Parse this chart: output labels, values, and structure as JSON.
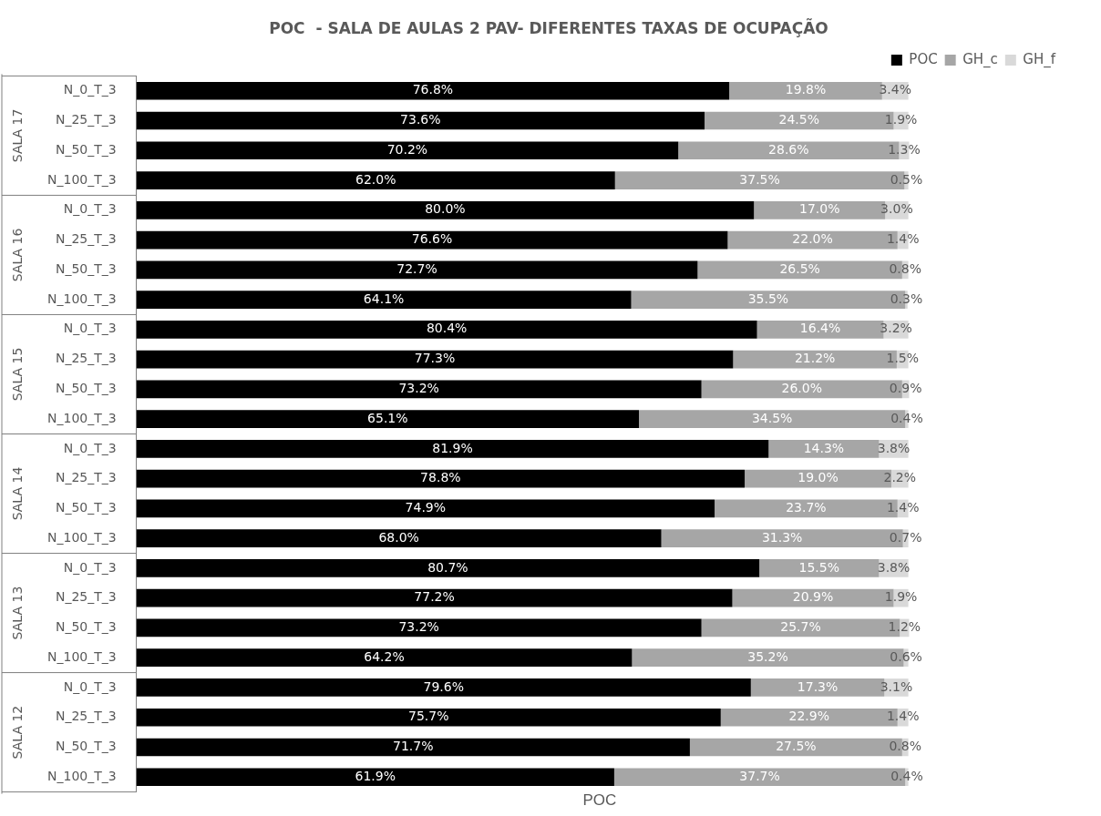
{
  "chart_data": {
    "type": "bar",
    "orientation": "horizontal",
    "stacked": true,
    "title": "POC  - SALA DE AULAS 2 PAV- DIFERENTES TAXAS DE OCUPAÇÃO",
    "xlabel": "POC",
    "categories": [
      "N_0_T_3",
      "N_25_T_3",
      "N_50_T_3",
      "N_100_T_3",
      "N_0_T_3",
      "N_25_T_3",
      "N_50_T_3",
      "N_100_T_3",
      "N_0_T_3",
      "N_25_T_3",
      "N_50_T_3",
      "N_100_T_3",
      "N_0_T_3",
      "N_25_T_3",
      "N_50_T_3",
      "N_100_T_3",
      "N_0_T_3",
      "N_25_T_3",
      "N_50_T_3",
      "N_100_T_3",
      "N_0_T_3",
      "N_25_T_3",
      "N_50_T_3",
      "N_100_T_3"
    ],
    "series": [
      {
        "name": "POC",
        "color": "#000000",
        "values": [
          76.8,
          73.6,
          70.2,
          62.0,
          80.0,
          76.6,
          72.7,
          64.1,
          80.4,
          77.3,
          73.2,
          65.1,
          81.9,
          78.8,
          74.9,
          68.0,
          80.7,
          77.2,
          73.2,
          64.2,
          79.6,
          75.7,
          71.7,
          61.9
        ],
        "value_labels": [
          "76.8%",
          "73.6%",
          "70.2%",
          "62.0%",
          "80.0%",
          "76.6%",
          "72.7%",
          "64.1%",
          "80.4%",
          "77.3%",
          "73.2%",
          "65.1%",
          "81.9%",
          "78.8%",
          "74.9%",
          "68.0%",
          "80.7%",
          "77.2%",
          "73.2%",
          "64.2%",
          "79.6%",
          "75.7%",
          "71.7%",
          "61.9%"
        ]
      },
      {
        "name": "GH_c",
        "color": "#a6a6a6",
        "values": [
          19.8,
          24.5,
          28.6,
          37.5,
          17.0,
          22.0,
          26.5,
          35.5,
          16.4,
          21.2,
          26.0,
          34.5,
          14.3,
          19.0,
          23.7,
          31.3,
          15.5,
          20.9,
          25.7,
          35.2,
          17.3,
          22.9,
          27.5,
          37.7
        ],
        "value_labels": [
          "19.8%",
          "24.5%",
          "28.6%",
          "37.5%",
          "17.0%",
          "22.0%",
          "26.5%",
          "35.5%",
          "16.4%",
          "21.2%",
          "26.0%",
          "34.5%",
          "14.3%",
          "19.0%",
          "23.7%",
          "31.3%",
          "15.5%",
          "20.9%",
          "25.7%",
          "35.2%",
          "17.3%",
          "22.9%",
          "27.5%",
          "37.7%"
        ]
      },
      {
        "name": "GH_f",
        "color": "#d9d9d9",
        "values": [
          3.4,
          1.9,
          1.3,
          0.5,
          3.0,
          1.4,
          0.8,
          0.3,
          3.2,
          1.5,
          0.9,
          0.4,
          3.8,
          2.2,
          1.4,
          0.7,
          3.8,
          1.9,
          1.2,
          0.6,
          3.1,
          1.4,
          0.8,
          0.4
        ],
        "value_labels": [
          "3.4%",
          "1.9%",
          "1.3%",
          "0.5%",
          "3.0%",
          "1.4%",
          "0.8%",
          "0.3%",
          "3.2%",
          "1.5%",
          "0.9%",
          "0.4%",
          "3.8%",
          "2.2%",
          "1.4%",
          "0.7%",
          "3.8%",
          "1.9%",
          "1.2%",
          "0.6%",
          "3.1%",
          "1.4%",
          "0.8%",
          "0.4%"
        ]
      }
    ],
    "tick_labels": "y",
    "legend": "top right",
    "annotations": [
      "SALA 17",
      "SALA 16",
      "SALA 15",
      "SALA 14",
      "SALA 13",
      "SALA 12"
    ]
  }
}
